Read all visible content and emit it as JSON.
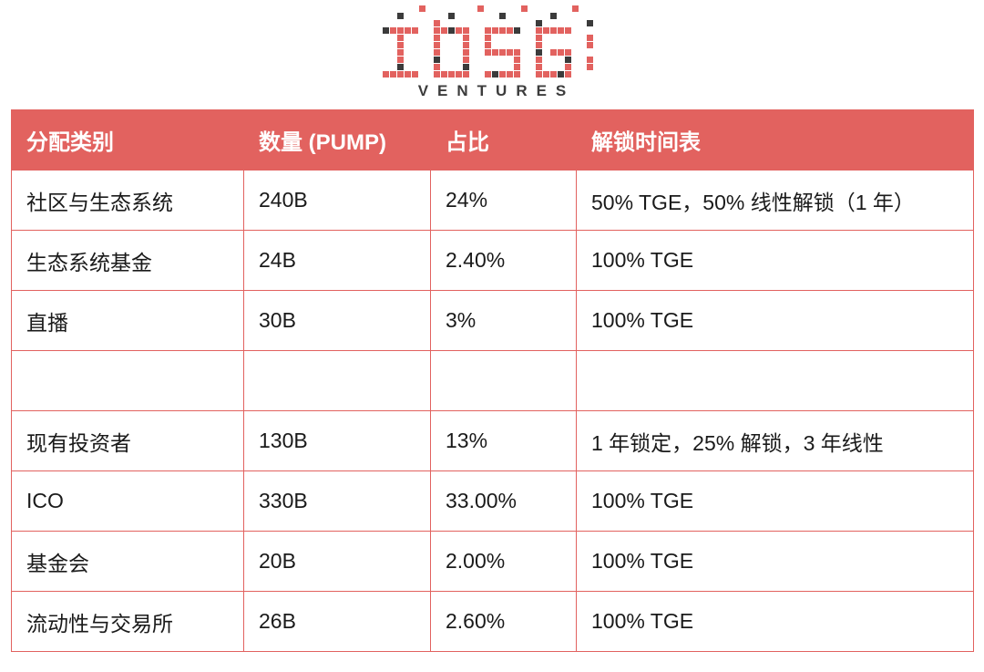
{
  "logo": {
    "brand": "IOSG",
    "subtitle": "VENTURES"
  },
  "colors": {
    "accent": "#E2625F",
    "logo_dark": "#3b3b3b",
    "header_text": "#FFFFFF",
    "body_text": "#1a1a1a"
  },
  "chart_data": {
    "type": "table",
    "columns": [
      "分配类别",
      "数量 (PUMP)",
      "占比",
      "解锁时间表"
    ],
    "rows": [
      [
        "社区与生态系统",
        "240B",
        "24%",
        "50% TGE，50% 线性解锁（1 年）"
      ],
      [
        "生态系统基金",
        "24B",
        "2.40%",
        "100% TGE"
      ],
      [
        "直播",
        "30B",
        "3%",
        "100% TGE"
      ],
      [
        "",
        "",
        "",
        ""
      ],
      [
        "现有投资者",
        "130B",
        "13%",
        "1 年锁定，25% 解锁，3 年线性"
      ],
      [
        "ICO",
        "330B",
        "33.00%",
        "100% TGE"
      ],
      [
        "基金会",
        "20B",
        "2.00%",
        "100% TGE"
      ],
      [
        "流动性与交易所",
        "26B",
        "2.60%",
        "100% TGE"
      ]
    ]
  }
}
